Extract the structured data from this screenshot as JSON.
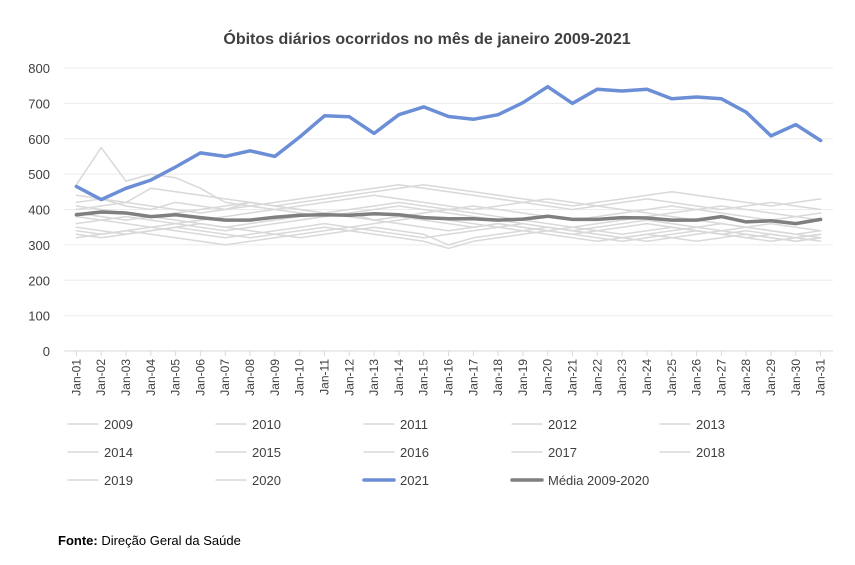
{
  "chart_data": {
    "type": "line",
    "title": "Óbitos diários ocorridos no mês de janeiro 2009-2021",
    "xlabel": "",
    "ylabel": "",
    "ylim": [
      0,
      800
    ],
    "yticks": [
      0,
      100,
      200,
      300,
      400,
      500,
      600,
      700,
      800
    ],
    "grid": true,
    "legend_position": "bottom",
    "categories": [
      "Jan-01",
      "Jan-02",
      "Jan-03",
      "Jan-04",
      "Jan-05",
      "Jan-06",
      "Jan-07",
      "Jan-08",
      "Jan-09",
      "Jan-10",
      "Jan-11",
      "Jan-12",
      "Jan-13",
      "Jan-14",
      "Jan-15",
      "Jan-16",
      "Jan-17",
      "Jan-18",
      "Jan-19",
      "Jan-20",
      "Jan-21",
      "Jan-22",
      "Jan-23",
      "Jan-24",
      "Jan-25",
      "Jan-26",
      "Jan-27",
      "Jan-28",
      "Jan-29",
      "Jan-30",
      "Jan-31"
    ],
    "series": [
      {
        "name": "2009",
        "color": "#d9d9d9",
        "width": 1.5,
        "values": [
          470,
          575,
          480,
          500,
          490,
          460,
          420,
          410,
          400,
          390,
          380,
          390,
          370,
          360,
          350,
          340,
          350,
          360,
          350,
          340,
          330,
          340,
          350,
          360,
          350,
          340,
          330,
          340,
          330,
          320,
          310
        ]
      },
      {
        "name": "2010",
        "color": "#d9d9d9",
        "width": 1.5,
        "values": [
          420,
          430,
          410,
          400,
          420,
          410,
          400,
          420,
          410,
          400,
          390,
          380,
          370,
          380,
          370,
          360,
          350,
          360,
          350,
          340,
          350,
          340,
          330,
          340,
          350,
          340,
          330,
          320,
          330,
          320,
          330
        ]
      },
      {
        "name": "2011",
        "color": "#d9d9d9",
        "width": 1.5,
        "values": [
          380,
          370,
          360,
          350,
          340,
          330,
          320,
          330,
          340,
          350,
          360,
          350,
          340,
          330,
          320,
          330,
          340,
          350,
          360,
          350,
          340,
          330,
          320,
          310,
          320,
          330,
          340,
          330,
          320,
          310,
          320
        ]
      },
      {
        "name": "2012",
        "color": "#d9d9d9",
        "width": 1.5,
        "values": [
          350,
          340,
          330,
          340,
          350,
          360,
          350,
          340,
          330,
          320,
          330,
          340,
          350,
          340,
          330,
          300,
          320,
          330,
          340,
          350,
          340,
          330,
          320,
          330,
          340,
          350,
          360,
          350,
          340,
          330,
          340
        ]
      },
      {
        "name": "2013",
        "color": "#d9d9d9",
        "width": 1.5,
        "values": [
          400,
          410,
          420,
          460,
          450,
          440,
          430,
          420,
          410,
          420,
          430,
          440,
          450,
          460,
          470,
          460,
          450,
          440,
          430,
          420,
          410,
          420,
          430,
          440,
          450,
          440,
          430,
          420,
          410,
          420,
          430
        ]
      },
      {
        "name": "2014",
        "color": "#d9d9d9",
        "width": 1.5,
        "values": [
          360,
          370,
          380,
          370,
          360,
          350,
          340,
          350,
          360,
          370,
          380,
          390,
          400,
          410,
          400,
          390,
          380,
          370,
          360,
          350,
          340,
          350,
          360,
          370,
          360,
          350,
          340,
          350,
          360,
          350,
          340
        ]
      },
      {
        "name": "2015",
        "color": "#d9d9d9",
        "width": 1.5,
        "values": [
          440,
          430,
          420,
          410,
          400,
          390,
          400,
          410,
          420,
          430,
          440,
          450,
          460,
          470,
          460,
          450,
          440,
          430,
          420,
          410,
          400,
          410,
          420,
          430,
          420,
          410,
          400,
          410,
          420,
          410,
          400
        ]
      },
      {
        "name": "2016",
        "color": "#d9d9d9",
        "width": 1.5,
        "values": [
          330,
          320,
          330,
          340,
          350,
          340,
          330,
          320,
          330,
          340,
          350,
          340,
          330,
          320,
          310,
          290,
          310,
          320,
          330,
          340,
          330,
          320,
          310,
          320,
          330,
          340,
          330,
          320,
          310,
          320,
          330
        ]
      },
      {
        "name": "2017",
        "color": "#d9d9d9",
        "width": 1.5,
        "values": [
          390,
          380,
          370,
          380,
          390,
          400,
          410,
          420,
          410,
          400,
          390,
          380,
          370,
          380,
          390,
          400,
          410,
          400,
          390,
          380,
          370,
          380,
          390,
          400,
          410,
          400,
          390,
          380,
          370,
          380,
          390
        ]
      },
      {
        "name": "2018",
        "color": "#d9d9d9",
        "width": 1.5,
        "values": [
          340,
          330,
          340,
          350,
          360,
          370,
          380,
          390,
          400,
          410,
          420,
          430,
          440,
          430,
          420,
          410,
          400,
          410,
          420,
          430,
          420,
          410,
          400,
          390,
          380,
          370,
          360,
          350,
          340,
          330,
          320
        ]
      },
      {
        "name": "2019",
        "color": "#d9d9d9",
        "width": 1.5,
        "values": [
          320,
          330,
          340,
          330,
          320,
          310,
          300,
          310,
          320,
          330,
          340,
          350,
          360,
          370,
          380,
          370,
          360,
          350,
          340,
          330,
          320,
          310,
          320,
          330,
          320,
          310,
          320,
          330,
          320,
          310,
          320
        ]
      },
      {
        "name": "2020",
        "color": "#d9d9d9",
        "width": 1.5,
        "values": [
          410,
          400,
          390,
          380,
          370,
          360,
          350,
          360,
          370,
          380,
          390,
          400,
          410,
          420,
          410,
          400,
          390,
          380,
          370,
          360,
          350,
          360,
          370,
          380,
          390,
          400,
          410,
          400,
          390,
          380,
          370
        ]
      },
      {
        "name": "2021",
        "color": "#6b8ed6",
        "width": 3.5,
        "values": [
          465,
          428,
          460,
          483,
          520,
          560,
          550,
          566,
          550,
          605,
          665,
          662,
          615,
          668,
          690,
          663,
          655,
          668,
          702,
          747,
          700,
          740,
          735,
          740,
          713,
          718,
          713,
          675,
          608,
          640,
          595
        ]
      },
      {
        "name": "Média 2009-2020",
        "color": "#7f7f7f",
        "width": 3.5,
        "values": [
          385,
          393,
          390,
          380,
          385,
          377,
          370,
          370,
          378,
          384,
          385,
          384,
          388,
          385,
          377,
          374,
          374,
          370,
          373,
          381,
          372,
          372,
          377,
          376,
          370,
          370,
          380,
          365,
          368,
          360,
          372
        ]
      }
    ]
  },
  "source": {
    "label": "Fonte:",
    "text": " Direção Geral da Saúde"
  }
}
